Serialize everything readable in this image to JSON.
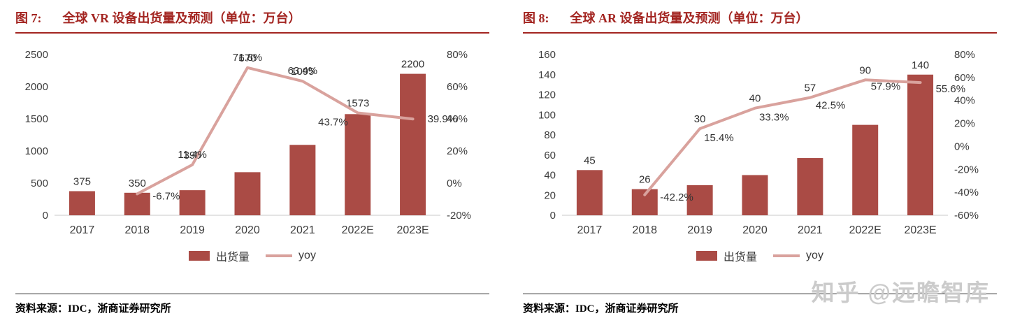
{
  "colors": {
    "accent_red": "#a32521",
    "bar": "#aa4b45",
    "line": "#d9a29d",
    "watermark": "#cbcbcb",
    "axis_text": "#3d3d3d",
    "label_text": "#333333"
  },
  "watermark_text": "知乎 @远瞻智库",
  "panels": [
    {
      "figure_label": "图 7:",
      "title": "全球 VR 设备出货量及预测（单位：万台）",
      "legend_bar": "出货量",
      "legend_line": "yoy",
      "source": "资料来源：IDC，浙商证券研究所"
    },
    {
      "figure_label": "图 8:",
      "title": "全球 AR 设备出货量及预测（单位：万台）",
      "legend_bar": "出货量",
      "legend_line": "yoy",
      "source": "资料来源：IDC，浙商证券研究所"
    }
  ],
  "chart_data": [
    {
      "type": "bar+line",
      "title": "全球 VR 设备出货量及预测（单位：万台）",
      "categories": [
        "2017",
        "2018",
        "2019",
        "2020",
        "2021",
        "2022E",
        "2023E"
      ],
      "bar_series": {
        "name": "出货量",
        "axis": "left",
        "values": [
          375,
          350,
          390,
          670,
          1095,
          1573,
          2200
        ]
      },
      "line_series": {
        "name": "yoy",
        "axis": "right",
        "values": [
          null,
          -6.7,
          11.4,
          71.8,
          63.4,
          43.7,
          39.9
        ],
        "labels": [
          null,
          "-6.7%",
          "11.4%",
          "71.8%",
          "63.4%",
          "43.7%",
          "39.9%"
        ],
        "label_dx": [
          0,
          22,
          0,
          0,
          0,
          -14,
          21
        ],
        "label_dy": [
          0,
          8,
          -10,
          -10,
          -10,
          18,
          5
        ],
        "label_anchor": [
          null,
          "start",
          "middle",
          "middle",
          "middle",
          "end",
          "start"
        ]
      },
      "left_axis": {
        "min": 0,
        "max": 2500,
        "ticks": [
          0,
          500,
          1000,
          1500,
          2000,
          2500
        ],
        "suffix": ""
      },
      "right_axis": {
        "min": -20,
        "max": 80,
        "ticks": [
          -20,
          0,
          20,
          40,
          60,
          80
        ],
        "suffix": "%"
      },
      "grid": false,
      "legend_position": "bottom"
    },
    {
      "type": "bar+line",
      "title": "全球 AR 设备出货量及预测（单位：万台）",
      "categories": [
        "2017",
        "2018",
        "2019",
        "2020",
        "2021",
        "2022E",
        "2023E"
      ],
      "bar_series": {
        "name": "出货量",
        "axis": "left",
        "values": [
          45,
          26,
          30,
          40,
          57,
          90,
          140
        ]
      },
      "line_series": {
        "name": "yoy",
        "axis": "right",
        "values": [
          null,
          -42.2,
          15.4,
          33.3,
          42.5,
          57.9,
          55.6
        ],
        "labels": [
          null,
          "-42.2%",
          "15.4%",
          "33.3%",
          "42.5%",
          "57.9%",
          "55.6%"
        ],
        "label_dx": [
          0,
          22,
          6,
          6,
          8,
          8,
          22
        ],
        "label_dy": [
          0,
          8,
          18,
          18,
          16,
          14,
          14
        ],
        "label_anchor": [
          null,
          "start",
          "start",
          "start",
          "start",
          "start",
          "start"
        ]
      },
      "left_axis": {
        "min": 0,
        "max": 160,
        "ticks": [
          0,
          20,
          40,
          60,
          80,
          100,
          120,
          140,
          160
        ],
        "suffix": ""
      },
      "right_axis": {
        "min": -60,
        "max": 80,
        "ticks": [
          -60,
          -40,
          -20,
          0,
          20,
          40,
          60,
          80
        ],
        "suffix": "%"
      },
      "grid": false,
      "legend_position": "bottom"
    }
  ]
}
